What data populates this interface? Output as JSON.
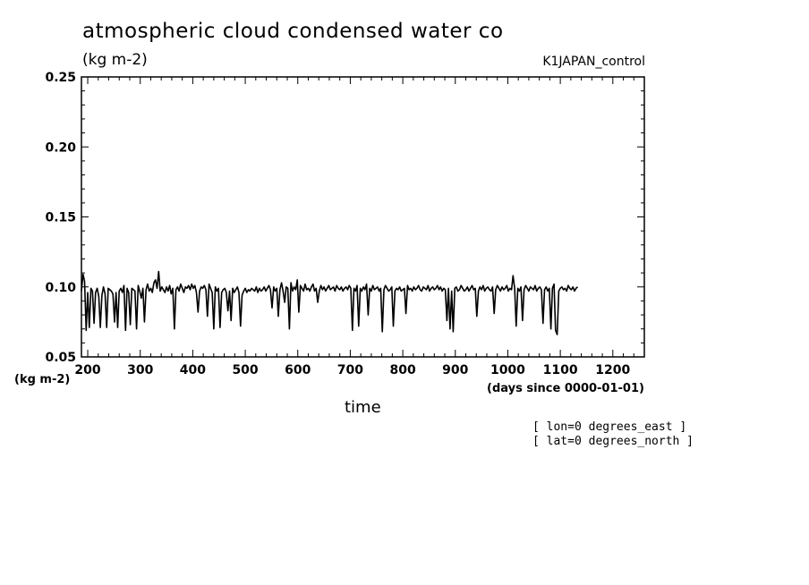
{
  "header": {
    "title": "atmospheric cloud condensed water co",
    "units": "(kg m-2)",
    "run_name": "K1JAPAN_control"
  },
  "annotations": {
    "lon": "[ lon=0 degrees_east ]",
    "lat": "[ lat=0 degrees_north ]"
  },
  "chart_data": {
    "type": "line",
    "title": "atmospheric cloud condensed water co",
    "xlabel": "time",
    "x_units": "(days since 0000-01-01)",
    "ylabel": "(kg m-2)",
    "xlim": [
      188,
      1260
    ],
    "ylim": [
      0.05,
      0.25
    ],
    "x_ticks": [
      200,
      300,
      400,
      500,
      600,
      700,
      800,
      900,
      1000,
      1100,
      1200
    ],
    "y_ticks": [
      "0.05",
      "0.10",
      "0.15",
      "0.20",
      "0.25"
    ],
    "grid": false,
    "series": [
      {
        "color": "#000000",
        "x_start": 188,
        "x_step": 3,
        "values": [
          0.097,
          0.109,
          0.104,
          0.069,
          0.096,
          0.071,
          0.099,
          0.097,
          0.074,
          0.096,
          0.099,
          0.093,
          0.071,
          0.094,
          0.1,
          0.095,
          0.071,
          0.099,
          0.098,
          0.097,
          0.095,
          0.075,
          0.096,
          0.071,
          0.097,
          0.099,
          0.096,
          0.101,
          0.069,
          0.099,
          0.096,
          0.073,
          0.099,
          0.098,
          0.097,
          0.07,
          0.101,
          0.097,
          0.092,
          0.099,
          0.075,
          0.098,
          0.102,
          0.097,
          0.099,
          0.096,
          0.103,
          0.105,
          0.099,
          0.111,
          0.097,
          0.1,
          0.098,
          0.096,
          0.1,
          0.097,
          0.101,
          0.095,
          0.099,
          0.07,
          0.098,
          0.1,
          0.097,
          0.102,
          0.099,
          0.096,
          0.1,
          0.099,
          0.101,
          0.098,
          0.102,
          0.099,
          0.101,
          0.096,
          0.082,
          0.097,
          0.1,
          0.099,
          0.101,
          0.098,
          0.079,
          0.102,
          0.099,
          0.096,
          0.07,
          0.1,
          0.097,
          0.099,
          0.071,
          0.096,
          0.098,
          0.099,
          0.096,
          0.083,
          0.097,
          0.076,
          0.099,
          0.096,
          0.098,
          0.1,
          0.096,
          0.072,
          0.094,
          0.097,
          0.099,
          0.096,
          0.098,
          0.097,
          0.099,
          0.098,
          0.097,
          0.1,
          0.096,
          0.099,
          0.097,
          0.098,
          0.1,
          0.097,
          0.099,
          0.101,
          0.098,
          0.085,
          0.1,
          0.097,
          0.099,
          0.079,
          0.098,
          0.103,
          0.097,
          0.089,
          0.1,
          0.099,
          0.07,
          0.103,
          0.097,
          0.1,
          0.098,
          0.105,
          0.082,
          0.101,
          0.099,
          0.097,
          0.102,
          0.098,
          0.099,
          0.097,
          0.1,
          0.102,
          0.097,
          0.099,
          0.089,
          0.097,
          0.101,
          0.098,
          0.1,
          0.097,
          0.099,
          0.101,
          0.098,
          0.099,
          0.1,
          0.097,
          0.101,
          0.099,
          0.098,
          0.1,
          0.097,
          0.099,
          0.1,
          0.098,
          0.101,
          0.099,
          0.069,
          0.099,
          0.097,
          0.101,
          0.072,
          0.099,
          0.097,
          0.1,
          0.098,
          0.102,
          0.08,
          0.099,
          0.097,
          0.101,
          0.098,
          0.099,
          0.1,
          0.097,
          0.099,
          0.068,
          0.098,
          0.101,
          0.099,
          0.097,
          0.098,
          0.1,
          0.072,
          0.097,
          0.099,
          0.098,
          0.1,
          0.097,
          0.098,
          0.099,
          0.081,
          0.101,
          0.098,
          0.099,
          0.097,
          0.1,
          0.098,
          0.099,
          0.101,
          0.098,
          0.097,
          0.1,
          0.099,
          0.098,
          0.101,
          0.097,
          0.099,
          0.1,
          0.098,
          0.099,
          0.101,
          0.098,
          0.1,
          0.097,
          0.099,
          0.098,
          0.076,
          0.099,
          0.07,
          0.097,
          0.068,
          0.099,
          0.1,
          0.097,
          0.098,
          0.101,
          0.099,
          0.097,
          0.098,
          0.1,
          0.097,
          0.099,
          0.101,
          0.098,
          0.099,
          0.079,
          0.097,
          0.1,
          0.098,
          0.101,
          0.097,
          0.099,
          0.1,
          0.098,
          0.097,
          0.1,
          0.081,
          0.098,
          0.101,
          0.099,
          0.097,
          0.1,
          0.098,
          0.099,
          0.101,
          0.097,
          0.099,
          0.098,
          0.108,
          0.099,
          0.072,
          0.099,
          0.097,
          0.1,
          0.076,
          0.098,
          0.101,
          0.099,
          0.097,
          0.1,
          0.099,
          0.098,
          0.101,
          0.097,
          0.099,
          0.1,
          0.098,
          0.074,
          0.098,
          0.1,
          0.097,
          0.099,
          0.07,
          0.099,
          0.102,
          0.069,
          0.066,
          0.097,
          0.099,
          0.1,
          0.098,
          0.099,
          0.097,
          0.101,
          0.099,
          0.098,
          0.1,
          0.097,
          0.099,
          0.1
        ]
      }
    ]
  }
}
